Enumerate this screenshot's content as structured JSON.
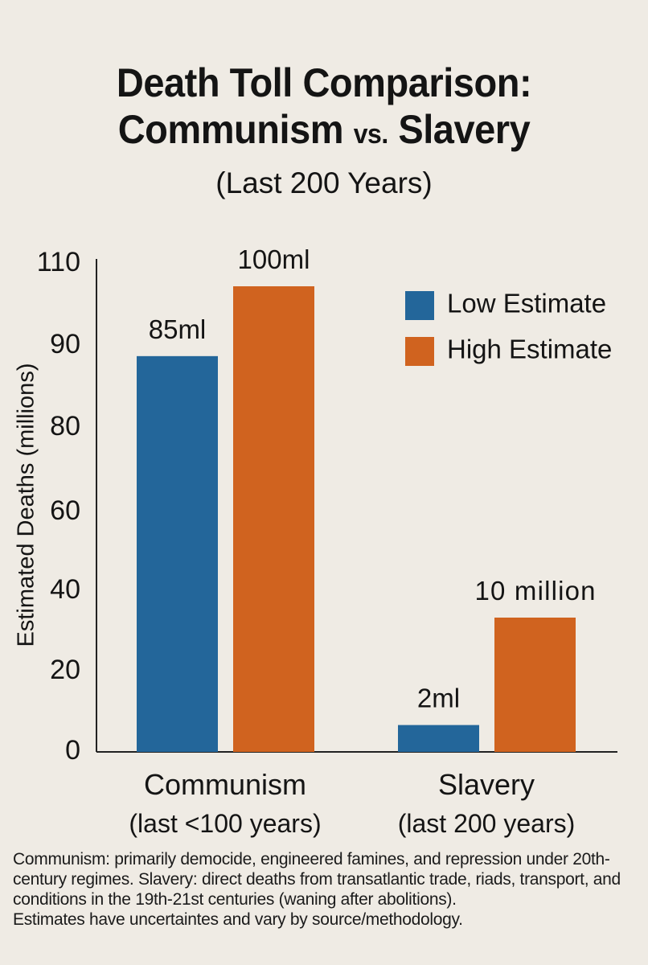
{
  "chart_data": {
    "type": "bar",
    "title_lines": [
      "Death Toll Comparison:",
      "Communism",
      "vs.",
      "Slavery"
    ],
    "subtitle": "(Last 200 Years)",
    "ylabel": "Estimated Deaths (millions)",
    "yticks": [
      0,
      20,
      40,
      60,
      80,
      90,
      110
    ],
    "categories": [
      {
        "name": "Communism",
        "period": "(last <100 years)"
      },
      {
        "name": "Slavery",
        "period": "(last 200 years)"
      }
    ],
    "series": [
      {
        "name": "Low Estimate",
        "color": "#23669a",
        "values": [
          85,
          2
        ],
        "labels": [
          "85ml",
          "2ml"
        ]
      },
      {
        "name": "High Estimate",
        "color": "#d0631f",
        "values": [
          100,
          10
        ],
        "labels": [
          "100ml",
          "10 million"
        ]
      }
    ],
    "legend_position": "top-right"
  },
  "notes": [
    "Communism: primarily democide, engineered famines, and repression under 20th-century regimes. Slavery: direct deaths from transatlantic trade, riads, transport, and conditions in the 19th-21st centuries (waning after abolitions).",
    "Estimates have uncertaintes and vary by source/methodology."
  ]
}
